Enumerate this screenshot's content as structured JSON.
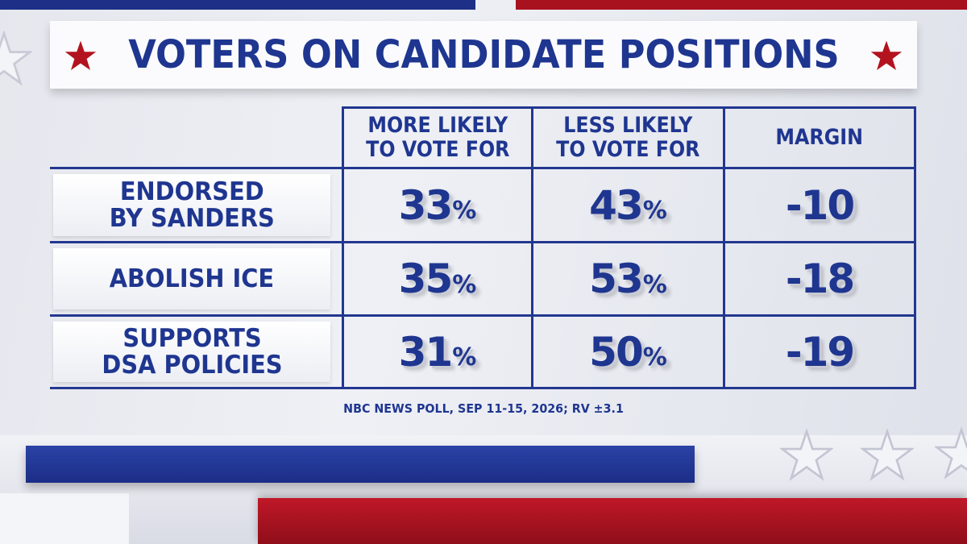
{
  "title": "VOTERS ON CANDIDATE POSITIONS",
  "source": "NBC NEWS POLL, SEP 11-15, 2026; RV ±3.1",
  "colors": {
    "brand_blue": "#1f3690",
    "brand_red": "#b3131f",
    "panel_white": "#fbfbfd"
  },
  "icons": {
    "title_left": "red-star-icon",
    "title_right": "red-star-icon",
    "decor": "white-star-icon"
  },
  "chart_data": {
    "type": "table",
    "title": "VOTERS ON CANDIDATE POSITIONS",
    "columns": [
      "MORE LIKELY\nTO VOTE FOR",
      "LESS LIKELY\nTO VOTE FOR",
      "MARGIN"
    ],
    "rows": [
      {
        "label": "ENDORSED\nBY SANDERS",
        "more_likely": "33",
        "less_likely": "43",
        "margin": "-10"
      },
      {
        "label": "ABOLISH ICE",
        "more_likely": "35",
        "less_likely": "53",
        "margin": "-18"
      },
      {
        "label": "SUPPORTS\nDSA POLICIES",
        "more_likely": "31",
        "less_likely": "50",
        "margin": "-19"
      }
    ],
    "unit_symbol": "%"
  }
}
